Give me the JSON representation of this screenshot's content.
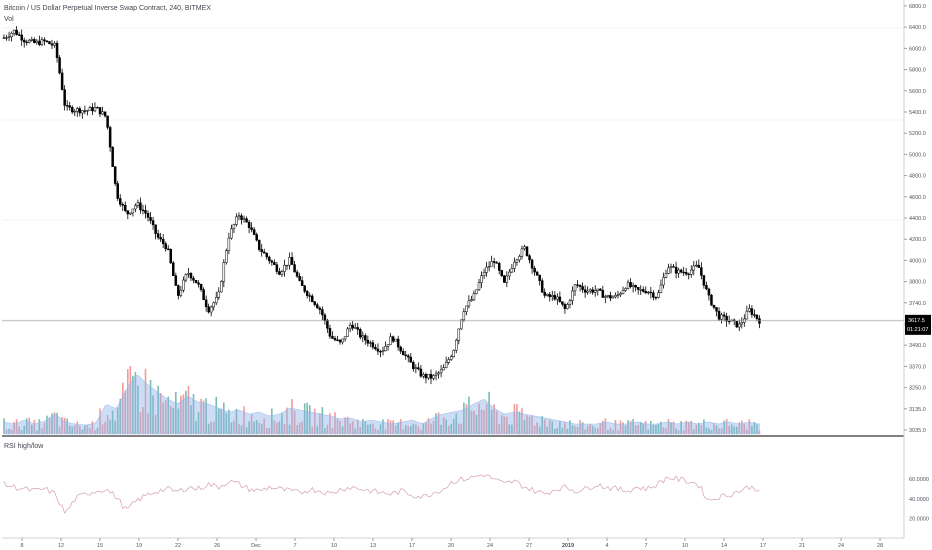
{
  "header": {
    "symbol_line": "Bitcoin / US Dollar Perpetual Inverse Swap Contract, 240, BITMEX",
    "volume_label": "Vol",
    "rsi_label": "RSI high/low"
  },
  "price_badge": {
    "price": "3617.5",
    "countdown": "01:21:07"
  },
  "colors": {
    "candle": "#000000",
    "volume_up": "#5fb3a4",
    "volume_down": "#ef8a8a",
    "volume_area": "#8fb4e8",
    "rsi_line": "#d8a8bd",
    "price_line": "#9e9e9e",
    "axis_text": "#50535e",
    "badge_bg": "#000000",
    "badge_text": "#ffffff"
  },
  "chart_data": [
    {
      "type": "candlestick",
      "title": "Bitcoin / US Dollar Perpetual Inverse Swap Contract, 240, BITMEX",
      "x_ticks": [
        "8",
        "12",
        "15",
        "19",
        "22",
        "26",
        "Dec",
        "7",
        "10",
        "13",
        "17",
        "20",
        "24",
        "27",
        "2019",
        "4",
        "7",
        "10",
        "14",
        "17",
        "21",
        "24",
        "28"
      ],
      "y_ticks": [
        "6800.0",
        "6400.0",
        "6000.0",
        "5800.0",
        "5600.0",
        "5400.0",
        "5200.0",
        "5000.0",
        "4800.0",
        "4600.0",
        "4400.0",
        "4200.0",
        "4000.0",
        "3800.0",
        "3740.0",
        "3540.0",
        "3490.0",
        "3370.0",
        "3250.0",
        "3135.0",
        "3035.0"
      ],
      "y_scale": "log",
      "current_price": 3617.5,
      "approx_closes": [
        6470,
        6560,
        6440,
        6400,
        6420,
        6360,
        5600,
        5580,
        5570,
        5600,
        5500,
        4700,
        4500,
        4600,
        4500,
        4300,
        4200,
        3800,
        4000,
        3900,
        3700,
        3800,
        4300,
        4500,
        4400,
        4200,
        4100,
        4000,
        4100,
        3900,
        3800,
        3700,
        3500,
        3450,
        3600,
        3500,
        3450,
        3400,
        3500,
        3400,
        3300,
        3230,
        3220,
        3270,
        3400,
        3700,
        3800,
        4000,
        4100,
        3900,
        4100,
        4200,
        4000,
        3800,
        3800,
        3700,
        3900,
        3850,
        3850,
        3800,
        3800,
        3900,
        3850,
        3850,
        3800,
        4050,
        4000,
        4000,
        4050,
        3800,
        3650,
        3620,
        3580,
        3700,
        3620
      ]
    },
    {
      "type": "bar",
      "title": "Vol",
      "ylim": [
        0,
        1
      ],
      "approx_relative_values": [
        0.12,
        0.1,
        0.14,
        0.1,
        0.13,
        0.2,
        0.12,
        0.1,
        0.09,
        0.11,
        0.3,
        0.25,
        0.45,
        0.6,
        0.5,
        0.42,
        0.35,
        0.3,
        0.38,
        0.32,
        0.3,
        0.26,
        0.22,
        0.24,
        0.2,
        0.22,
        0.18,
        0.2,
        0.26,
        0.24,
        0.22,
        0.2,
        0.18,
        0.15,
        0.16,
        0.12,
        0.14,
        0.12,
        0.1,
        0.12,
        0.14,
        0.1,
        0.16,
        0.2,
        0.22,
        0.24,
        0.3,
        0.35,
        0.26,
        0.2,
        0.22,
        0.2,
        0.18,
        0.16,
        0.14,
        0.12,
        0.1,
        0.1,
        0.1,
        0.12,
        0.1,
        0.1,
        0.12,
        0.1,
        0.1,
        0.12,
        0.1,
        0.12,
        0.1,
        0.12,
        0.1,
        0.12,
        0.1,
        0.12,
        0.1
      ]
    },
    {
      "type": "line",
      "title": "RSI high/low",
      "y_ticks": [
        "60.0000",
        "40.0000",
        "20.0000"
      ],
      "ylim": [
        0,
        100
      ],
      "approx_values": [
        55,
        52,
        50,
        48,
        50,
        45,
        25,
        40,
        45,
        48,
        50,
        42,
        28,
        38,
        44,
        48,
        50,
        47,
        52,
        50,
        55,
        52,
        58,
        55,
        50,
        48,
        52,
        50,
        48,
        46,
        50,
        48,
        45,
        50,
        52,
        50,
        48,
        46,
        45,
        48,
        44,
        42,
        46,
        50,
        58,
        60,
        62,
        65,
        60,
        55,
        58,
        52,
        48,
        45,
        50,
        52,
        48,
        50,
        55,
        52,
        50,
        48,
        52,
        50,
        55,
        62,
        60,
        58,
        55,
        38,
        42,
        44,
        48,
        52,
        50
      ]
    }
  ]
}
